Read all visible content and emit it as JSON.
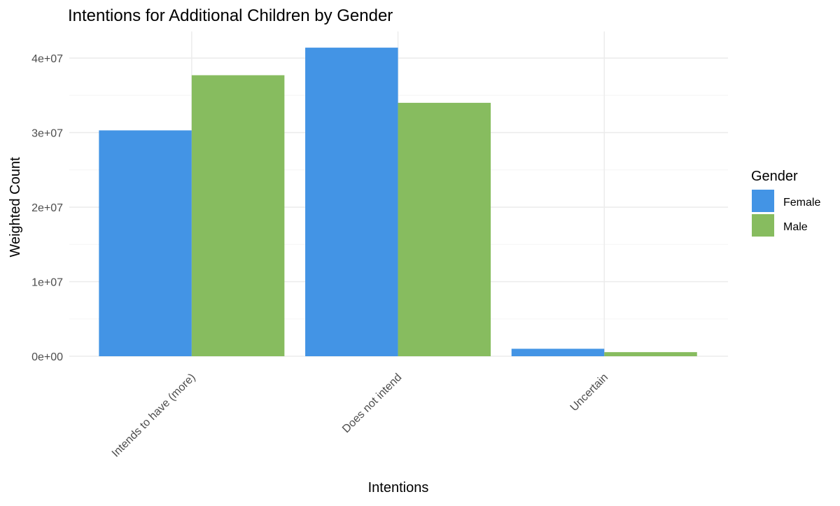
{
  "chart_data": {
    "type": "bar",
    "title": "Intentions for Additional Children by Gender",
    "xlabel": "Intentions",
    "ylabel": "Weighted Count",
    "categories": [
      "Intends to have (more)",
      "Does not intend",
      "Uncertain"
    ],
    "series": [
      {
        "name": "Female",
        "color": "#4394E5",
        "values": [
          30300000,
          41400000,
          1000000
        ]
      },
      {
        "name": "Male",
        "color": "#87BC5F",
        "values": [
          37700000,
          34000000,
          550000
        ]
      }
    ],
    "ylim": [
      0,
      43500000
    ],
    "yticks": [
      0,
      10000000,
      20000000,
      30000000,
      40000000
    ],
    "ytick_labels": [
      "0e+00",
      "1e+07",
      "2e+07",
      "3e+07",
      "4e+07"
    ],
    "legend": {
      "title": "Gender",
      "position": "right"
    },
    "grid": true,
    "colors": {
      "grid_major": "#EBEBEB",
      "grid_minor": "#F5F5F5",
      "background": "#FFFFFF"
    }
  }
}
